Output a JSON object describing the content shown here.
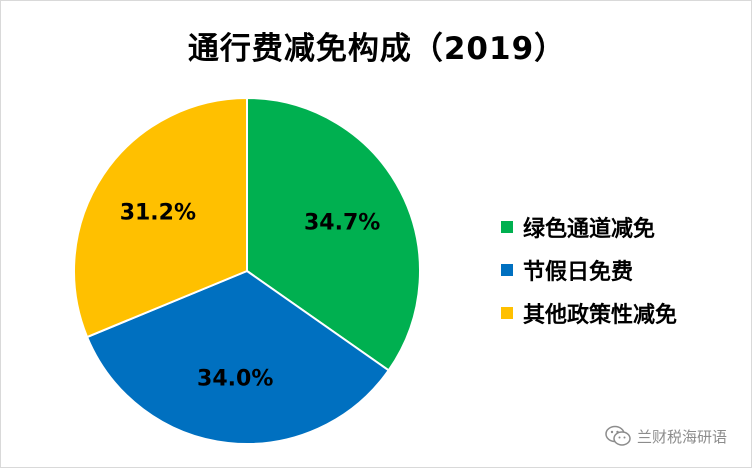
{
  "chart_data": {
    "type": "pie",
    "title": "通行费减免构成（2019）",
    "slices": [
      {
        "name": "绿色通道减免",
        "value": 34.7,
        "label": "34.7%",
        "color": "#00b050"
      },
      {
        "name": "节假日免费",
        "value": 34.0,
        "label": "34.0%",
        "color": "#0070c0"
      },
      {
        "name": "其他政策性减免",
        "value": 31.2,
        "label": "31.2%",
        "color": "#ffc000"
      }
    ],
    "legend_position": "right"
  },
  "watermark": {
    "text": "兰财税海研语",
    "icon": "wechat-icon"
  }
}
